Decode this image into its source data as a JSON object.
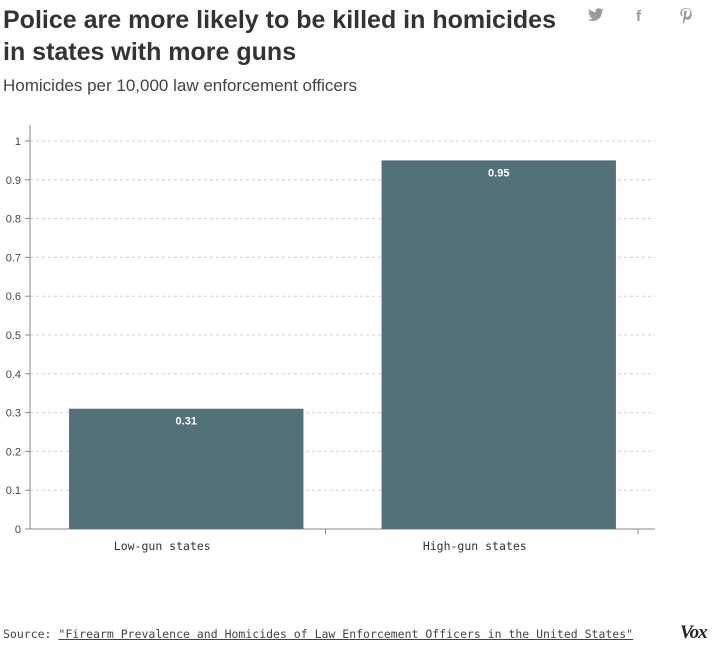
{
  "header": {
    "title": "Police are more likely to be killed in homicides in states with more guns",
    "subtitle": "Homicides per 10,000 law enforcement officers"
  },
  "share": {
    "twitter_glyph": "✈",
    "facebook_glyph": "f",
    "pinterest_glyph": "℘",
    "icons": [
      "twitter-icon",
      "facebook-icon",
      "pinterest-icon"
    ]
  },
  "chart_data": {
    "type": "bar",
    "categories": [
      "Low-gun states",
      "High-gun states"
    ],
    "values": [
      0.31,
      0.95
    ],
    "value_labels": [
      "0.31",
      "0.95"
    ],
    "title": "Police are more likely to be killed in homicides in states with more guns",
    "subtitle": "Homicides per 10,000 law enforcement officers",
    "xlabel": "",
    "ylabel": "",
    "ylim": [
      0,
      1
    ],
    "yticks": [
      0,
      0.1,
      0.2,
      0.3,
      0.4,
      0.5,
      0.6,
      0.7,
      0.8,
      0.9,
      1
    ],
    "ytick_labels": [
      "0",
      "0.1",
      "0.2",
      "0.3",
      "0.4",
      "0.5",
      "0.6",
      "0.7",
      "0.8",
      "0.9",
      "1"
    ],
    "grid": true,
    "legend": "none",
    "bar_color": "#527178",
    "label_color": "#ffffff"
  },
  "footer": {
    "source_label": "Source:",
    "source_link": "\"Firearm Prevalence and Homicides of Law Enforcement Officers in the United States\"",
    "logo_text": "Vox"
  }
}
